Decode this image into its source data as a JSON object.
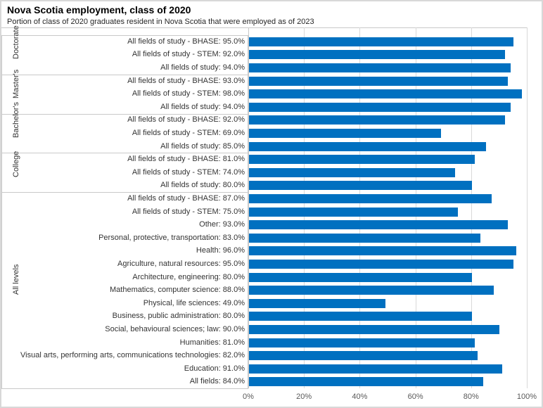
{
  "header": {
    "title": "Nova Scotia employment, class of 2020",
    "subtitle": "Portion of class of 2020 graduates resident in Nova Scotia that were employed as of 2023"
  },
  "chart_data": {
    "type": "bar",
    "orientation": "horizontal",
    "title": "Nova Scotia employment, class of 2020",
    "subtitle": "Portion of class of 2020 graduates resident in Nova Scotia that were employed as of 2023",
    "xlabel": "",
    "ylabel": "",
    "xlim": [
      0,
      100
    ],
    "unit": "%",
    "grid": "vertical-only",
    "x_ticks": [
      "0%",
      "20%",
      "40%",
      "60%",
      "80%",
      "100%"
    ],
    "x_tick_values": [
      0,
      20,
      40,
      60,
      80,
      100
    ],
    "bar_color": "#0070C0",
    "gridline_color": "#d9d9d9",
    "box_border_color": "#c9c9c9",
    "label_format": "{label}: {value}%",
    "groups": [
      {
        "name": "Doctorate",
        "items": [
          {
            "label": "All fields of study - BHASE",
            "value": 95.0
          },
          {
            "label": "All fields of study - STEM",
            "value": 92.0
          },
          {
            "label": "All fields of study",
            "value": 94.0
          }
        ]
      },
      {
        "name": "Master's",
        "items": [
          {
            "label": "All fields of study - BHASE",
            "value": 93.0
          },
          {
            "label": "All fields of study - STEM",
            "value": 98.0
          },
          {
            "label": "All fields of study",
            "value": 94.0
          }
        ]
      },
      {
        "name": "Bachelor's",
        "items": [
          {
            "label": "All fields of study - BHASE",
            "value": 92.0
          },
          {
            "label": "All fields of study - STEM",
            "value": 69.0
          },
          {
            "label": "All fields of study",
            "value": 85.0
          }
        ]
      },
      {
        "name": "College",
        "items": [
          {
            "label": "All fields of study - BHASE",
            "value": 81.0
          },
          {
            "label": "All fields of study - STEM",
            "value": 74.0
          },
          {
            "label": "All fields of study",
            "value": 80.0
          }
        ]
      },
      {
        "name": "All levels",
        "items": [
          {
            "label": "All fields of study - BHASE",
            "value": 87.0
          },
          {
            "label": "All fields of study - STEM",
            "value": 75.0
          },
          {
            "label": "Other",
            "value": 93.0
          },
          {
            "label": "Personal, protective, transportation",
            "value": 83.0
          },
          {
            "label": "Health",
            "value": 96.0
          },
          {
            "label": "Agriculture, natural resources",
            "value": 95.0
          },
          {
            "label": "Architecture, engineering",
            "value": 80.0
          },
          {
            "label": "Mathematics, computer science",
            "value": 88.0
          },
          {
            "label": "Physical, life sciences",
            "value": 49.0
          },
          {
            "label": "Business, public administration",
            "value": 80.0
          },
          {
            "label": "Social, behavioural sciences; law",
            "value": 90.0
          },
          {
            "label": "Humanities",
            "value": 81.0
          },
          {
            "label": "Visual arts, performing arts, communications technologies",
            "value": 82.0
          },
          {
            "label": "Education",
            "value": 91.0
          },
          {
            "label": "All fields",
            "value": 84.0
          }
        ]
      }
    ]
  }
}
